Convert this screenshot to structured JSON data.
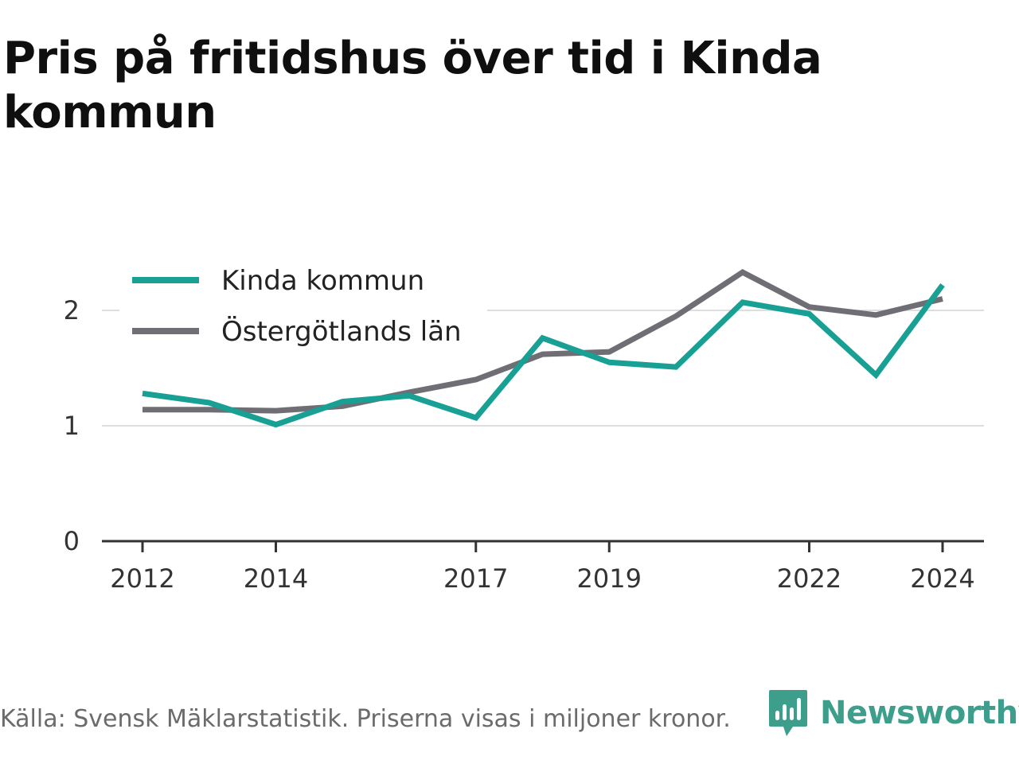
{
  "title": "Pris på fritidshus över tid i Kinda kommun",
  "footer": "Källa: Svensk Mäklarstatistik. Priserna visas i miljoner kronor.",
  "brand": {
    "name": "Newsworthy",
    "icon": "newsworthy-chart-bubble-icon",
    "color": "#3d9e8c"
  },
  "chart_data": {
    "type": "line",
    "x": [
      2012,
      2013,
      2014,
      2015,
      2016,
      2017,
      2018,
      2019,
      2020,
      2021,
      2022,
      2023,
      2024
    ],
    "x_tick_labels": [
      "2012",
      "2014",
      "2017",
      "2019",
      "2022",
      "2024"
    ],
    "x_tick_values": [
      2012,
      2014,
      2017,
      2019,
      2022,
      2024
    ],
    "y_ticks": [
      0,
      1,
      2
    ],
    "y_tick_labels": [
      "0",
      "1",
      "2"
    ],
    "xlim": [
      2011.4,
      2024.6
    ],
    "ylim": [
      0,
      2.35
    ],
    "grid": true,
    "legend_position": "top-left",
    "series": [
      {
        "name": "Kinda kommun",
        "color": "#18a094",
        "values": [
          1.28,
          1.2,
          1.01,
          1.21,
          1.26,
          1.07,
          1.76,
          1.55,
          1.51,
          2.07,
          1.97,
          1.44,
          2.22
        ]
      },
      {
        "name": "Östergötlands län",
        "color": "#6f6e75",
        "values": [
          1.14,
          1.14,
          1.13,
          1.17,
          1.29,
          1.4,
          1.62,
          1.64,
          1.95,
          2.33,
          2.03,
          1.96,
          2.1
        ]
      }
    ]
  }
}
